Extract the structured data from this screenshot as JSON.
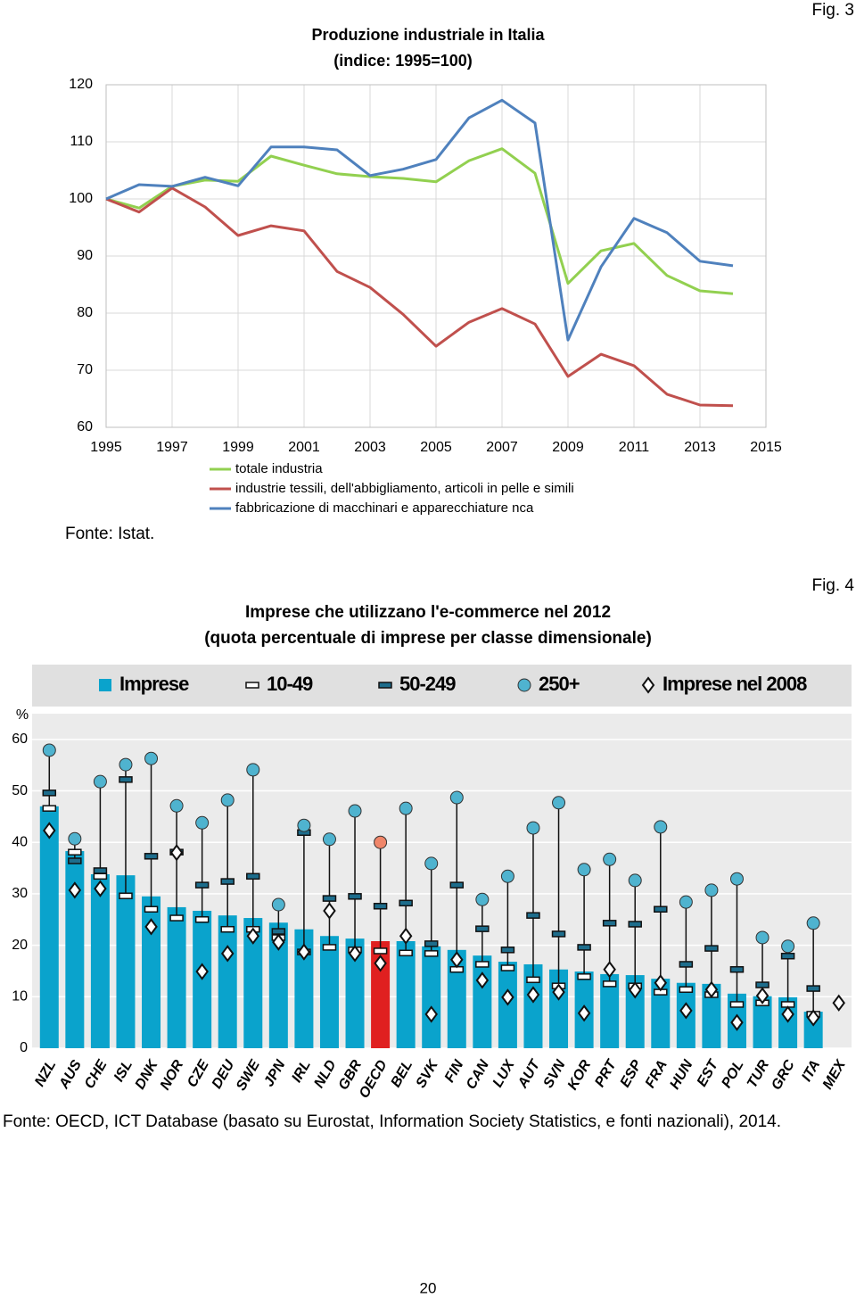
{
  "figure_labels": [
    "Fig. 3",
    "Fig. 4"
  ],
  "chart_data": [
    {
      "type": "line",
      "title": "Produzione industriale in Italia",
      "subtitle": "(indice: 1995=100)",
      "x": [
        1995,
        1996,
        1997,
        1998,
        1999,
        2000,
        2001,
        2002,
        2003,
        2004,
        2005,
        2006,
        2007,
        2008,
        2009,
        2010,
        2011,
        2012,
        2013,
        2014
      ],
      "series": [
        {
          "name": "totale industria",
          "color": "#92d050",
          "values": [
            100,
            98.4,
            102.2,
            103.3,
            103.1,
            107.5,
            105.9,
            104.4,
            103.9,
            103.6,
            103.0,
            106.7,
            108.8,
            104.5,
            85.2,
            90.9,
            92.2,
            86.6,
            83.9,
            83.4
          ]
        },
        {
          "name": "industrie tessili, dell'abbigliamento, articoli in pelle e simili",
          "color": "#c0504d",
          "values": [
            100,
            97.7,
            101.9,
            98.6,
            93.6,
            95.3,
            94.4,
            87.3,
            84.5,
            79.8,
            74.2,
            78.4,
            80.8,
            78.1,
            68.9,
            72.8,
            70.8,
            65.8,
            63.9,
            63.8
          ]
        },
        {
          "name": "fabbricazione di macchinari e apparecchiature nca",
          "color": "#4f81bd",
          "values": [
            100,
            102.5,
            102.2,
            103.8,
            102.3,
            109.1,
            109.1,
            108.6,
            104.1,
            105.2,
            106.9,
            114.2,
            117.3,
            113.3,
            75.3,
            88.1,
            96.6,
            94.1,
            89.1,
            88.3
          ]
        }
      ],
      "xlim": [
        1995,
        2015
      ],
      "xticks": [
        1995,
        1997,
        1999,
        2001,
        2003,
        2005,
        2007,
        2009,
        2011,
        2013,
        2015
      ],
      "ylim": [
        60,
        120
      ],
      "yticks": [
        60,
        70,
        80,
        90,
        100,
        110,
        120
      ],
      "grid": true,
      "legend": "bottom-left"
    },
    {
      "type": "bar",
      "title": "Imprese che utilizzano l'e-commerce nel 2012",
      "subtitle": "(quota percentuale di imprese per classe dimensionale)",
      "y_label": "%",
      "categories": [
        "NZL",
        "AUS",
        "CHE",
        "ISL",
        "DNK",
        "NOR",
        "CZE",
        "DEU",
        "SWE",
        "JPN",
        "IRL",
        "NLD",
        "GBR",
        "OECD",
        "BEL",
        "SVK",
        "FIN",
        "CAN",
        "LUX",
        "AUT",
        "SVN",
        "KOR",
        "PRT",
        "ESP",
        "FRA",
        "HUN",
        "EST",
        "POL",
        "TUR",
        "GRC",
        "ITA",
        "MEX"
      ],
      "highlight_category": "OECD",
      "series": [
        {
          "name": "Imprese",
          "marker": "bar",
          "color": "#0aa3cc",
          "highlight_color": "#e02020",
          "values": [
            47.0,
            38.3,
            33.8,
            33.6,
            29.5,
            27.4,
            26.7,
            25.8,
            25.3,
            24.4,
            23.1,
            21.8,
            21.3,
            20.8,
            20.8,
            19.8,
            19.1,
            18.0,
            16.8,
            16.3,
            15.3,
            14.9,
            14.4,
            14.2,
            13.5,
            12.7,
            12.5,
            10.6,
            10.1,
            9.9,
            7.1,
            null
          ]
        },
        {
          "name": "10-49",
          "marker": "dash",
          "color": "#ffffff",
          "values": [
            46.6,
            38.1,
            33.4,
            29.6,
            27.0,
            25.3,
            25.0,
            23.1,
            23.1,
            21.5,
            18.7,
            19.6,
            19.1,
            18.9,
            18.5,
            18.4,
            15.3,
            16.3,
            15.6,
            13.3,
            12.1,
            13.9,
            12.5,
            12.1,
            10.9,
            11.4,
            10.4,
            8.5,
            8.8,
            8.5,
            6.6,
            null
          ]
        },
        {
          "name": "50-249",
          "marker": "dash",
          "color": "#1d6d8c",
          "values": [
            49.6,
            36.4,
            34.5,
            52.2,
            37.3,
            38.1,
            31.7,
            32.4,
            33.4,
            22.7,
            41.9,
            29.1,
            29.5,
            27.6,
            28.2,
            20.3,
            31.7,
            23.2,
            19.1,
            25.8,
            22.2,
            19.6,
            24.3,
            24.1,
            27.0,
            16.3,
            19.4,
            15.3,
            12.3,
            17.9,
            11.6,
            null
          ]
        },
        {
          "name": "250+",
          "marker": "circle",
          "color": "#4fb3cf",
          "highlight_color": "#f0866a",
          "values": [
            57.9,
            40.7,
            51.8,
            55.1,
            56.3,
            47.1,
            43.8,
            48.2,
            54.1,
            27.9,
            43.3,
            40.6,
            46.1,
            40.0,
            46.6,
            35.9,
            48.7,
            28.9,
            33.4,
            42.8,
            47.7,
            34.7,
            36.7,
            32.6,
            43.0,
            28.4,
            30.7,
            32.9,
            21.5,
            19.8,
            24.3,
            null
          ]
        },
        {
          "name": "Imprese nel 2008",
          "marker": "diamond",
          "color": "#ffffff",
          "values": [
            42.3,
            30.7,
            31.0,
            null,
            23.6,
            38.0,
            14.9,
            18.4,
            21.8,
            20.6,
            18.7,
            26.7,
            18.4,
            16.5,
            21.8,
            6.6,
            17.2,
            13.2,
            9.9,
            10.4,
            10.9,
            6.8,
            15.3,
            11.3,
            12.7,
            7.3,
            11.4,
            5.0,
            10.2,
            6.6,
            5.9,
            8.8
          ]
        }
      ],
      "ylim": [
        0,
        65
      ],
      "yticks": [
        0,
        10,
        20,
        30,
        40,
        50,
        60
      ],
      "grid": true,
      "legend": "top"
    }
  ],
  "sources": [
    "Fonte: Istat.",
    "Fonte: OECD, ICT Database (basato su Eurostat, Information Society Statistics, e fonti nazionali), 2014."
  ],
  "page_number": "20"
}
